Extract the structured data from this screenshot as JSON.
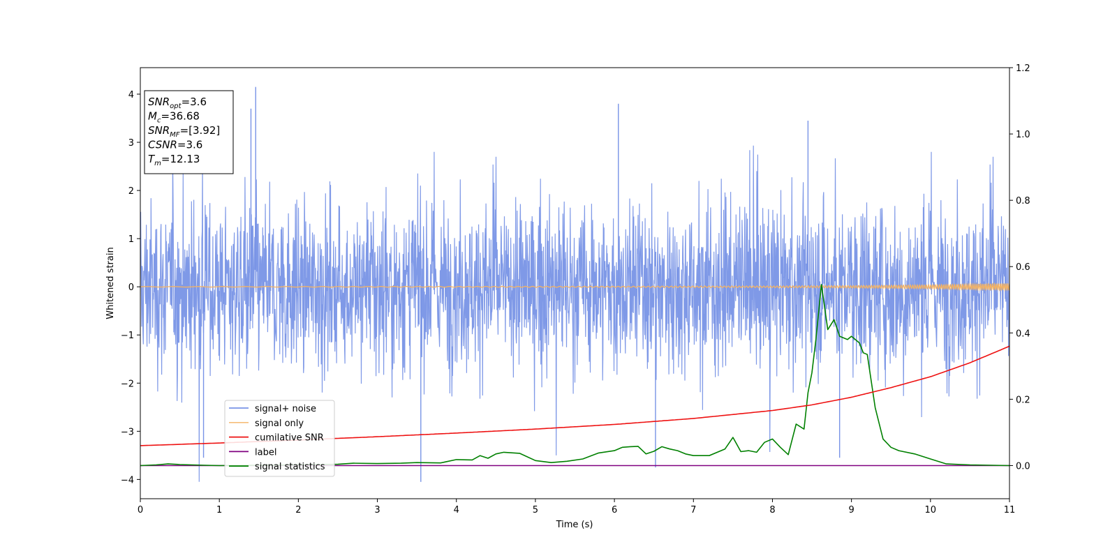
{
  "chart_data": {
    "type": "line",
    "xlabel": "Time (s)",
    "ylabel": "Whitened strain",
    "xlim": [
      0,
      11
    ],
    "ylim_left": [
      -4.4,
      4.55
    ],
    "ylim_right": [
      -0.1,
      1.2
    ],
    "x_ticks": [
      "0",
      "1",
      "2",
      "3",
      "4",
      "5",
      "6",
      "7",
      "8",
      "9",
      "10",
      "11"
    ],
    "y_ticks_left": [
      "4",
      "3",
      "2",
      "1",
      "0",
      "−1",
      "−2",
      "−3",
      "−4"
    ],
    "y_ticks_right": [
      "0.0",
      "0.2",
      "0.4",
      "0.6",
      "0.8",
      "1.0",
      "1.2"
    ],
    "legend_position": "lower-left",
    "info_box": [
      {
        "base": "SNR",
        "sub": "opt",
        "value": "=3.6"
      },
      {
        "base": "M",
        "sub": "c",
        "value": "=36.68"
      },
      {
        "base": "SNR",
        "sub": "MF",
        "value": "=[3.92]"
      },
      {
        "base": "CSNR",
        "sub": "",
        "value": "=3.6"
      },
      {
        "base": "T",
        "sub": "m",
        "value": "=12.13"
      }
    ],
    "series": [
      {
        "name": "signal+ noise",
        "axis": "left",
        "color": "#7893e6",
        "kind": "noise",
        "mean": 0.0,
        "approx_range": [
          -4.05,
          4.15
        ],
        "notable_spikes": [
          [
            1.46,
            4.15
          ],
          [
            1.4,
            3.7
          ],
          [
            6.05,
            3.8
          ],
          [
            8.45,
            3.45
          ],
          [
            3.55,
            -4.05
          ],
          [
            6.52,
            -3.75
          ],
          [
            0.8,
            -3.55
          ],
          [
            8.85,
            -3.55
          ]
        ]
      },
      {
        "name": "signal only",
        "axis": "left",
        "color": "#f5b362",
        "kind": "chirp",
        "x": [
          0,
          2,
          4,
          6,
          8,
          9,
          10,
          11
        ],
        "amplitude": [
          0.005,
          0.006,
          0.008,
          0.011,
          0.017,
          0.025,
          0.04,
          0.07
        ]
      },
      {
        "name": "cumilative SNR",
        "axis": "right",
        "color": "#ee1111",
        "x": [
          0,
          1,
          2,
          3,
          4,
          5,
          6,
          7,
          8,
          8.5,
          9,
          9.5,
          10,
          10.5,
          11
        ],
        "values": [
          0.06,
          0.068,
          0.077,
          0.087,
          0.098,
          0.11,
          0.124,
          0.142,
          0.166,
          0.183,
          0.206,
          0.235,
          0.268,
          0.31,
          0.36
        ]
      },
      {
        "name": "label",
        "axis": "right",
        "color": "#800080",
        "x": [
          0,
          11
        ],
        "values": [
          0.0,
          0.0
        ]
      },
      {
        "name": "signal statistics",
        "axis": "right",
        "color": "#008000",
        "x": [
          0,
          0.2,
          0.35,
          0.5,
          0.8,
          1.0,
          1.5,
          2.0,
          2.5,
          2.7,
          3.0,
          3.3,
          3.5,
          3.8,
          4.0,
          4.2,
          4.3,
          4.4,
          4.5,
          4.6,
          4.8,
          5.0,
          5.2,
          5.4,
          5.6,
          5.8,
          6.0,
          6.1,
          6.2,
          6.3,
          6.4,
          6.5,
          6.6,
          6.7,
          6.8,
          6.9,
          7.0,
          7.2,
          7.4,
          7.5,
          7.6,
          7.7,
          7.8,
          7.9,
          8.0,
          8.1,
          8.2,
          8.3,
          8.4,
          8.45,
          8.5,
          8.55,
          8.62,
          8.7,
          8.78,
          8.85,
          8.95,
          9.0,
          9.1,
          9.15,
          9.2,
          9.3,
          9.4,
          9.5,
          9.6,
          9.8,
          10.0,
          10.2,
          10.5,
          11.0
        ],
        "values": [
          0.0,
          0.002,
          0.005,
          0.003,
          0.001,
          0.0,
          0.001,
          0.002,
          0.004,
          0.007,
          0.006,
          0.007,
          0.009,
          0.008,
          0.018,
          0.017,
          0.03,
          0.022,
          0.035,
          0.04,
          0.037,
          0.015,
          0.009,
          0.013,
          0.02,
          0.038,
          0.045,
          0.055,
          0.057,
          0.058,
          0.035,
          0.043,
          0.057,
          0.05,
          0.045,
          0.035,
          0.03,
          0.03,
          0.05,
          0.085,
          0.042,
          0.045,
          0.04,
          0.07,
          0.08,
          0.055,
          0.033,
          0.125,
          0.11,
          0.22,
          0.28,
          0.38,
          0.546,
          0.41,
          0.44,
          0.39,
          0.38,
          0.39,
          0.37,
          0.34,
          0.335,
          0.175,
          0.08,
          0.055,
          0.045,
          0.035,
          0.02,
          0.005,
          0.002,
          0.0
        ]
      }
    ]
  }
}
